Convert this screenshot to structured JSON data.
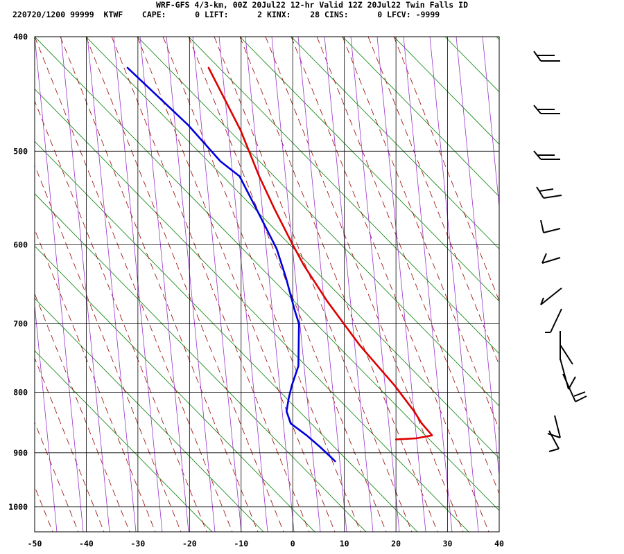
{
  "chart_data": {
    "type": "line",
    "title_line1": "WRF-GFS 4/3-km, 00Z 20Jul22 12-hr Valid 12Z 20Jul22 Twin Falls ID",
    "title_line2": "220720/1200 99999  KTWF    CAPE:      0 LIFT:      2 KINX:    28 CINS:      0 LFCV: -9999",
    "xlim": [
      -50,
      40
    ],
    "ylim": [
      400,
      1050
    ],
    "y_scale": "log-pressure",
    "x_ticks": [
      -50,
      -40,
      -30,
      -20,
      -10,
      0,
      10,
      20,
      30,
      40
    ],
    "y_ticks": [
      400,
      500,
      600,
      700,
      800,
      900,
      1000
    ],
    "x_tick_labels": [
      "-50",
      "-40",
      "-30",
      "-20",
      "-10",
      "0",
      "10",
      "20",
      "30",
      "40"
    ],
    "y_tick_labels": [
      "400",
      "500",
      "600",
      "700",
      "800",
      "900",
      "1000"
    ],
    "grid": true,
    "series": [
      {
        "color": "#dd0000",
        "points": [
          [
            -16.3,
            425
          ],
          [
            -10.1,
            480
          ],
          [
            -6.5,
            525
          ],
          [
            -3.5,
            560
          ],
          [
            0,
            600
          ],
          [
            2.2,
            625
          ],
          [
            6.7,
            670
          ],
          [
            13,
            730
          ],
          [
            19.8,
            790
          ],
          [
            23.5,
            830
          ],
          [
            25,
            850
          ],
          [
            27,
            870
          ],
          [
            24,
            875
          ],
          [
            20,
            877
          ]
        ]
      },
      {
        "color": "#0000dd",
        "points": [
          [
            -32,
            425
          ],
          [
            -20.3,
            475
          ],
          [
            -14,
            510
          ],
          [
            -10.3,
            525
          ],
          [
            -7,
            560
          ],
          [
            -3.1,
            605
          ],
          [
            -1.3,
            640
          ],
          [
            0.3,
            680
          ],
          [
            1.2,
            700
          ],
          [
            1.1,
            760
          ],
          [
            -0.2,
            790
          ],
          [
            -0.8,
            810
          ],
          [
            -1.2,
            830
          ],
          [
            -0.4,
            850
          ],
          [
            2.7,
            870
          ],
          [
            5.3,
            890
          ],
          [
            7.3,
            907
          ],
          [
            8.2,
            915
          ]
        ]
      }
    ],
    "background_lines": {
      "isotherm_color": "#000000",
      "dry_adiabat_color": "#008000",
      "moist_adiabat_color": "#990000",
      "mixing_ratio_color": "#9933cc"
    },
    "wind_barbs": {
      "color": "#000000",
      "levels": [
        {
          "flag_px": 88,
          "kind": "2full"
        },
        {
          "flag_px": 164,
          "kind": "2full"
        },
        {
          "flag_px": 230,
          "kind": "2full"
        },
        {
          "flag_px": 286,
          "kind": "full"
        },
        {
          "flag_px": 334,
          "kind": "full"
        },
        {
          "flag_px": 380,
          "kind": "half"
        },
        {
          "flag_px": 436,
          "kind": "full"
        },
        {
          "flag_px": 478,
          "kind": "full"
        },
        {
          "flag_px": 520,
          "kind": "full"
        },
        {
          "flag_px": 560,
          "kind": "full"
        },
        {
          "flag_px": 578,
          "kind": "full"
        },
        {
          "flag_px": 620,
          "kind": "full"
        },
        {
          "flag_px": 648,
          "kind": "full"
        }
      ]
    }
  }
}
